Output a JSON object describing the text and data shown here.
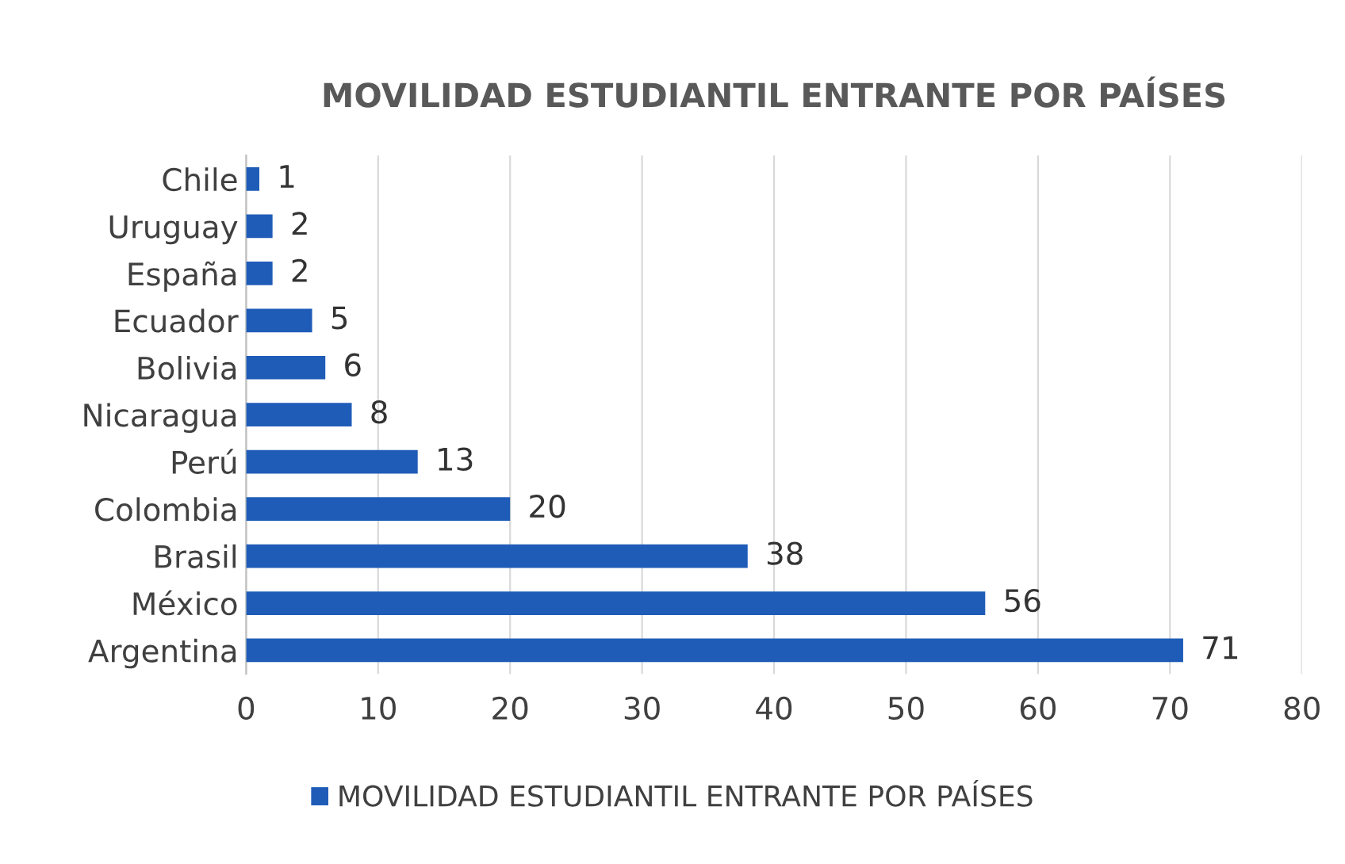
{
  "chart_data": {
    "type": "bar",
    "orientation": "horizontal",
    "title": "MOVILIDAD ESTUDIANTIL ENTRANTE POR PAÍSES",
    "categories": [
      "Chile",
      "Uruguay",
      "España",
      "Ecuador",
      "Bolivia",
      "Nicaragua",
      "Perú",
      "Colombia",
      "Brasil",
      "México",
      "Argentina"
    ],
    "series": [
      {
        "name": "MOVILIDAD ESTUDIANTIL ENTRANTE POR PAÍSES",
        "color": "#1f5cb8",
        "values": [
          1,
          2,
          2,
          5,
          6,
          8,
          13,
          20,
          38,
          56,
          71
        ]
      }
    ],
    "xlim": [
      0,
      80
    ],
    "xticks": [
      0,
      10,
      20,
      30,
      40,
      50,
      60,
      70,
      80
    ],
    "grid": "x",
    "legend": "bottom",
    "data_labels": true
  }
}
